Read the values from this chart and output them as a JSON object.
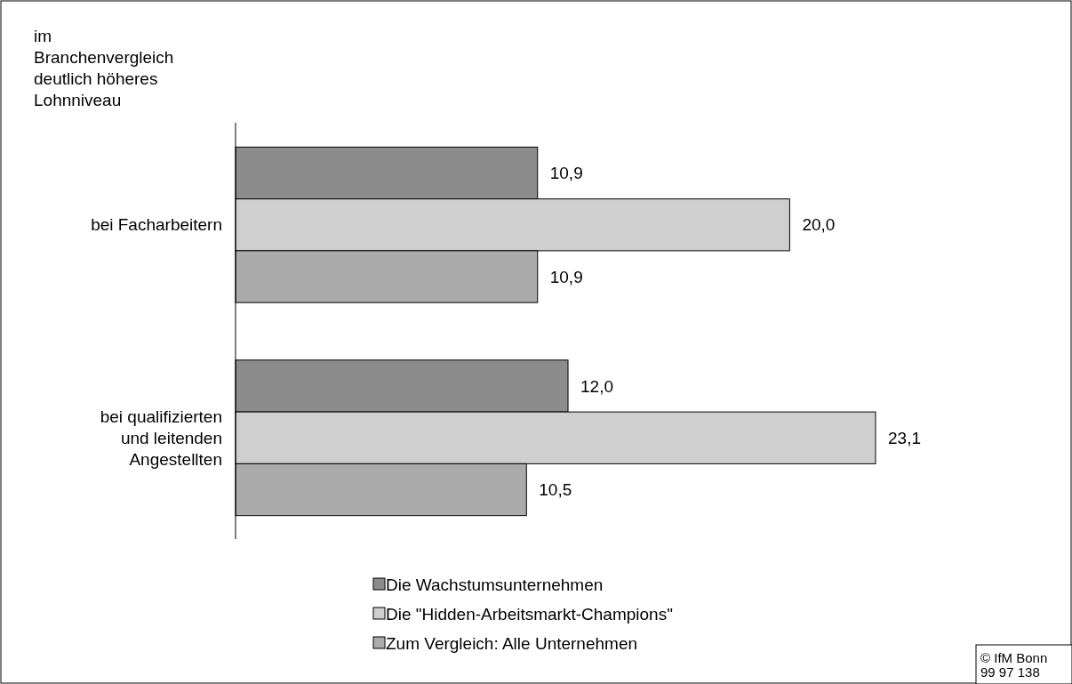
{
  "chart_data": {
    "type": "bar",
    "orientation": "horizontal",
    "title": "im Branchenvergleich deutlich höheres Lohnniveau",
    "categories": [
      "bei Facharbeitern",
      "bei qualifizierten und leitenden Angestellten"
    ],
    "series": [
      {
        "name": "Die Wachstumsunternehmen",
        "color": "#8c8c8c",
        "values": [
          10.9,
          12.0
        ],
        "value_labels": [
          "10,9",
          "12,0"
        ]
      },
      {
        "name": "Die \"Hidden-Arbeitsmarkt-Champions\"",
        "color": "#cfcfcf",
        "values": [
          20.0,
          23.1
        ],
        "value_labels": [
          "20,0",
          "23,1"
        ]
      },
      {
        "name": "Zum Vergleich: Alle Unternehmen",
        "color": "#ababab",
        "values": [
          10.9,
          10.5
        ],
        "value_labels": [
          "10,9",
          "10,5"
        ]
      }
    ],
    "legend": "bottom",
    "annotations": [
      "© IfM Bonn 99 97 138"
    ]
  }
}
